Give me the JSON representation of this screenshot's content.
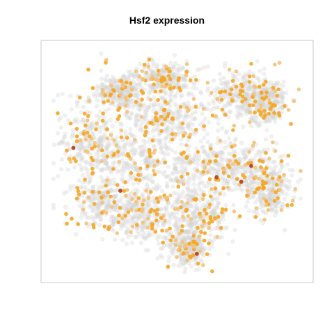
{
  "chart_data": {
    "type": "scatter",
    "title": "Hsf2 expression",
    "xlabel": "",
    "ylabel": "",
    "axes_visible": false,
    "grid": false,
    "legend": "none",
    "colors": {
      "background_cells": "#d3d3d3",
      "low": "#f3c27a",
      "mid": "#f5a623",
      "high": "#b5451b",
      "frame": "#c8c8c8"
    },
    "clusters": [
      {
        "cx": 0.27,
        "cy": 0.19,
        "sx": 0.05,
        "sy": 0.04
      },
      {
        "cx": 0.44,
        "cy": 0.13,
        "sx": 0.055,
        "sy": 0.035
      },
      {
        "cx": 0.46,
        "cy": 0.3,
        "sx": 0.08,
        "sy": 0.05
      },
      {
        "cx": 0.75,
        "cy": 0.2,
        "sx": 0.08,
        "sy": 0.055
      },
      {
        "cx": 0.86,
        "cy": 0.24,
        "sx": 0.05,
        "sy": 0.05
      },
      {
        "cx": 0.15,
        "cy": 0.42,
        "sx": 0.065,
        "sy": 0.09
      },
      {
        "cx": 0.33,
        "cy": 0.48,
        "sx": 0.09,
        "sy": 0.08
      },
      {
        "cx": 0.55,
        "cy": 0.55,
        "sx": 0.09,
        "sy": 0.08
      },
      {
        "cx": 0.76,
        "cy": 0.52,
        "sx": 0.08,
        "sy": 0.06
      },
      {
        "cx": 0.87,
        "cy": 0.63,
        "sx": 0.05,
        "sy": 0.06
      },
      {
        "cx": 0.2,
        "cy": 0.68,
        "sx": 0.07,
        "sy": 0.06
      },
      {
        "cx": 0.36,
        "cy": 0.74,
        "sx": 0.08,
        "sy": 0.06
      },
      {
        "cx": 0.58,
        "cy": 0.74,
        "sx": 0.07,
        "sy": 0.06
      },
      {
        "cx": 0.54,
        "cy": 0.88,
        "sx": 0.04,
        "sy": 0.04
      }
    ],
    "background_points_per_cluster": 230,
    "expressing_points_per_cluster": 42,
    "high_expression_points": [
      [
        0.8,
        0.52
      ],
      [
        0.76,
        0.59
      ],
      [
        0.66,
        0.57
      ],
      [
        0.08,
        0.44
      ],
      [
        0.58,
        0.91
      ],
      [
        0.27,
        0.63
      ]
    ]
  }
}
